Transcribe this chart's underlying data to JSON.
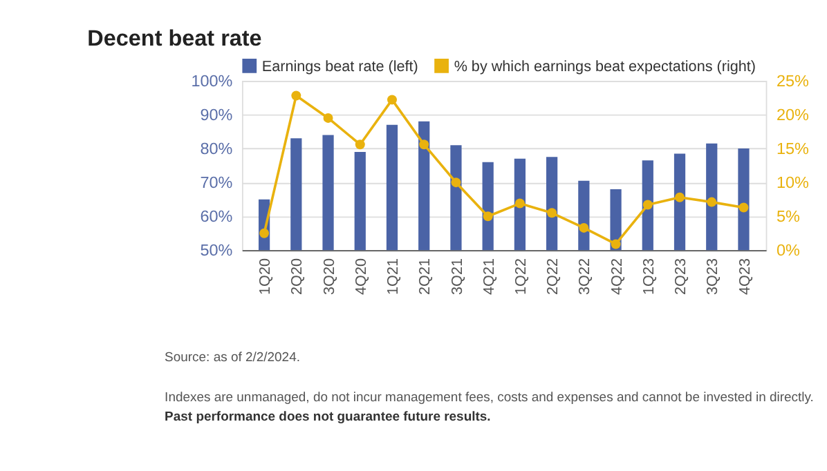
{
  "chart_data": {
    "type": "bar",
    "title": "Decent beat rate",
    "categories": [
      "1Q20",
      "2Q20",
      "3Q20",
      "4Q20",
      "1Q21",
      "2Q21",
      "3Q21",
      "4Q21",
      "1Q22",
      "2Q22",
      "3Q22",
      "4Q22",
      "1Q23",
      "2Q23",
      "3Q23",
      "4Q23"
    ],
    "series": [
      {
        "name": "Earnings beat rate (left)",
        "color": "#4a63a6",
        "values": [
          65,
          83,
          84,
          79,
          87,
          88,
          81,
          76,
          77,
          77.5,
          70.5,
          68,
          76.5,
          78.5,
          81.5,
          80
        ]
      },
      {
        "name": "% by which earnings beat expectations (right)",
        "color": "#e9b20e",
        "type": "line",
        "axis": "y2",
        "values": [
          2.5,
          22.8,
          19.5,
          15.6,
          22.2,
          15.6,
          10,
          5,
          6.9,
          5.5,
          3.3,
          0.9,
          6.7,
          7.8,
          7.1,
          6.3
        ]
      }
    ],
    "ylim": [
      50,
      100
    ],
    "yticks": [
      {
        "value": 50,
        "label": "50%"
      },
      {
        "value": 60,
        "label": "60%"
      },
      {
        "value": 70,
        "label": "70%"
      },
      {
        "value": 80,
        "label": "80%"
      },
      {
        "value": 90,
        "label": "90%"
      },
      {
        "value": 100,
        "label": "100%"
      }
    ],
    "y2lim": [
      0,
      25
    ],
    "y2ticks": [
      {
        "value": 0,
        "label": "0%"
      },
      {
        "value": 5,
        "label": "5%"
      },
      {
        "value": 10,
        "label": "10%"
      },
      {
        "value": 15,
        "label": "15%"
      },
      {
        "value": 20,
        "label": "20%"
      },
      {
        "value": 25,
        "label": "25%"
      }
    ],
    "grid": "y",
    "legend": "top",
    "marker": "circle",
    "annotations": [
      "Source: as of 2/2/2024.",
      "Indexes are unmanaged, do not incur management fees, costs and expenses and cannot be invested in directly.",
      "Past performance does not guarantee future results."
    ]
  }
}
